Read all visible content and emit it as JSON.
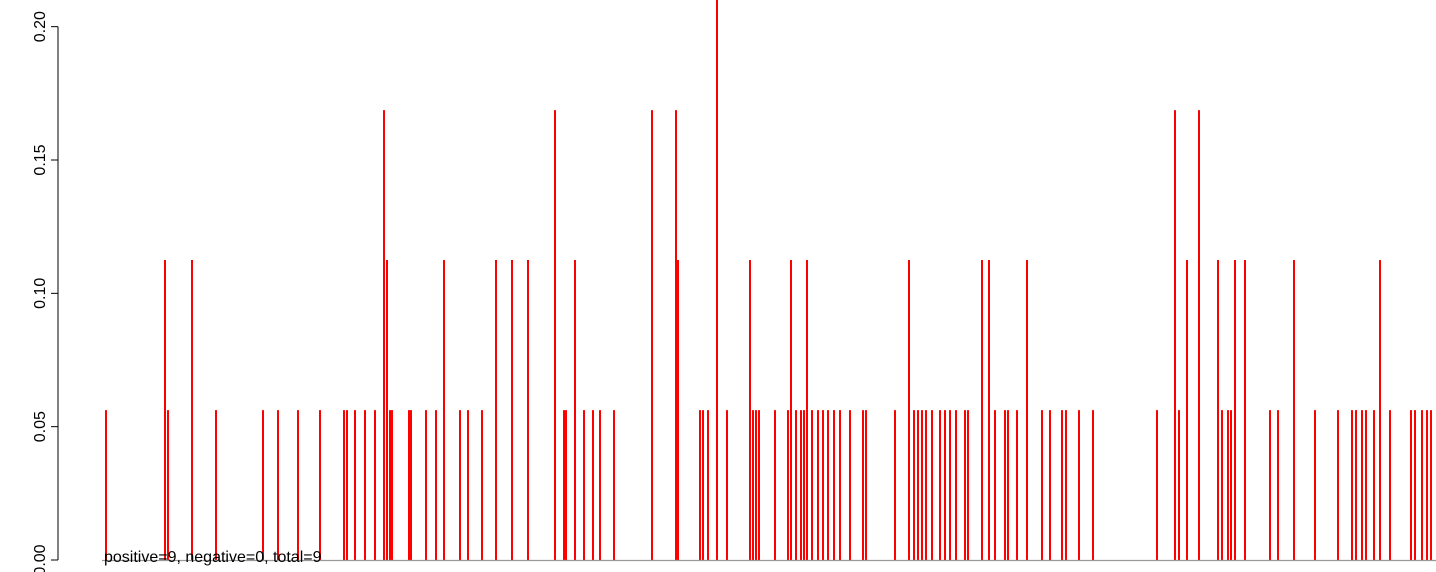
{
  "chart_data": {
    "type": "bar",
    "orientation": "vertical",
    "bar_color": "#ff0000",
    "baseline_color": "#999999",
    "grid": false,
    "legend": "none",
    "xlim": [
      0,
      1440
    ],
    "ylim": [
      0,
      0.21
    ],
    "y_ticks": [
      {
        "value": 0.0,
        "label": "0.00"
      },
      {
        "value": 0.05,
        "label": "0.05"
      },
      {
        "value": 0.1,
        "label": "0.10"
      },
      {
        "value": 0.15,
        "label": "0.15"
      },
      {
        "value": 0.2,
        "label": "0.20"
      }
    ],
    "annotation": "positive=9, negative=0, total=9",
    "bars": [
      {
        "x": 106,
        "y": 0.0562
      },
      {
        "x": 165,
        "y": 0.1125
      },
      {
        "x": 168,
        "y": 0.0562
      },
      {
        "x": 192,
        "y": 0.1125
      },
      {
        "x": 216,
        "y": 0.0562
      },
      {
        "x": 263,
        "y": 0.0562
      },
      {
        "x": 278,
        "y": 0.0562
      },
      {
        "x": 298,
        "y": 0.0562
      },
      {
        "x": 320,
        "y": 0.0562
      },
      {
        "x": 344,
        "y": 0.0562
      },
      {
        "x": 347,
        "y": 0.0562
      },
      {
        "x": 355,
        "y": 0.0562
      },
      {
        "x": 365,
        "y": 0.0562
      },
      {
        "x": 375,
        "y": 0.0562
      },
      {
        "x": 384,
        "y": 0.1687
      },
      {
        "x": 387,
        "y": 0.1125
      },
      {
        "x": 390,
        "y": 0.0562
      },
      {
        "x": 392,
        "y": 0.0562
      },
      {
        "x": 409,
        "y": 0.0562
      },
      {
        "x": 411,
        "y": 0.0562
      },
      {
        "x": 426,
        "y": 0.0562
      },
      {
        "x": 436,
        "y": 0.0562
      },
      {
        "x": 444,
        "y": 0.1125
      },
      {
        "x": 460,
        "y": 0.0562
      },
      {
        "x": 468,
        "y": 0.0562
      },
      {
        "x": 482,
        "y": 0.0562
      },
      {
        "x": 496,
        "y": 0.1125
      },
      {
        "x": 512,
        "y": 0.1125
      },
      {
        "x": 528,
        "y": 0.1125
      },
      {
        "x": 555,
        "y": 0.1687
      },
      {
        "x": 564,
        "y": 0.0562
      },
      {
        "x": 566,
        "y": 0.0562
      },
      {
        "x": 575,
        "y": 0.1125
      },
      {
        "x": 584,
        "y": 0.0562
      },
      {
        "x": 593,
        "y": 0.0562
      },
      {
        "x": 600,
        "y": 0.0562
      },
      {
        "x": 614,
        "y": 0.0562
      },
      {
        "x": 652,
        "y": 0.1687
      },
      {
        "x": 676,
        "y": 0.1687
      },
      {
        "x": 678,
        "y": 0.1125
      },
      {
        "x": 700,
        "y": 0.0562
      },
      {
        "x": 703,
        "y": 0.0562
      },
      {
        "x": 708,
        "y": 0.0562
      },
      {
        "x": 717,
        "y": 0.21
      },
      {
        "x": 727,
        "y": 0.0562
      },
      {
        "x": 750,
        "y": 0.1125
      },
      {
        "x": 753,
        "y": 0.0562
      },
      {
        "x": 756,
        "y": 0.0562
      },
      {
        "x": 759,
        "y": 0.0562
      },
      {
        "x": 775,
        "y": 0.0562
      },
      {
        "x": 788,
        "y": 0.0562
      },
      {
        "x": 791,
        "y": 0.1125
      },
      {
        "x": 796,
        "y": 0.0562
      },
      {
        "x": 801,
        "y": 0.0562
      },
      {
        "x": 804,
        "y": 0.0562
      },
      {
        "x": 807,
        "y": 0.1125
      },
      {
        "x": 812,
        "y": 0.0562
      },
      {
        "x": 818,
        "y": 0.0562
      },
      {
        "x": 823,
        "y": 0.0562
      },
      {
        "x": 828,
        "y": 0.0562
      },
      {
        "x": 834,
        "y": 0.0562
      },
      {
        "x": 840,
        "y": 0.0562
      },
      {
        "x": 850,
        "y": 0.0562
      },
      {
        "x": 863,
        "y": 0.0562
      },
      {
        "x": 866,
        "y": 0.0562
      },
      {
        "x": 895,
        "y": 0.0562
      },
      {
        "x": 909,
        "y": 0.1125
      },
      {
        "x": 914,
        "y": 0.0562
      },
      {
        "x": 918,
        "y": 0.0562
      },
      {
        "x": 922,
        "y": 0.0562
      },
      {
        "x": 926,
        "y": 0.0562
      },
      {
        "x": 932,
        "y": 0.0562
      },
      {
        "x": 940,
        "y": 0.0562
      },
      {
        "x": 945,
        "y": 0.0562
      },
      {
        "x": 950,
        "y": 0.0562
      },
      {
        "x": 956,
        "y": 0.0562
      },
      {
        "x": 965,
        "y": 0.0562
      },
      {
        "x": 968,
        "y": 0.0562
      },
      {
        "x": 982,
        "y": 0.1125
      },
      {
        "x": 989,
        "y": 0.1125
      },
      {
        "x": 995,
        "y": 0.0562
      },
      {
        "x": 1005,
        "y": 0.0562
      },
      {
        "x": 1008,
        "y": 0.0562
      },
      {
        "x": 1017,
        "y": 0.0562
      },
      {
        "x": 1027,
        "y": 0.1125
      },
      {
        "x": 1042,
        "y": 0.0562
      },
      {
        "x": 1050,
        "y": 0.0562
      },
      {
        "x": 1062,
        "y": 0.0562
      },
      {
        "x": 1066,
        "y": 0.0562
      },
      {
        "x": 1079,
        "y": 0.0562
      },
      {
        "x": 1093,
        "y": 0.0562
      },
      {
        "x": 1157,
        "y": 0.0562
      },
      {
        "x": 1175,
        "y": 0.1687
      },
      {
        "x": 1179,
        "y": 0.0562
      },
      {
        "x": 1187,
        "y": 0.1125
      },
      {
        "x": 1199,
        "y": 0.1687
      },
      {
        "x": 1218,
        "y": 0.1125
      },
      {
        "x": 1222,
        "y": 0.0562
      },
      {
        "x": 1228,
        "y": 0.0562
      },
      {
        "x": 1231,
        "y": 0.0562
      },
      {
        "x": 1235,
        "y": 0.1125
      },
      {
        "x": 1245,
        "y": 0.1125
      },
      {
        "x": 1270,
        "y": 0.0562
      },
      {
        "x": 1278,
        "y": 0.0562
      },
      {
        "x": 1294,
        "y": 0.1125
      },
      {
        "x": 1315,
        "y": 0.0562
      },
      {
        "x": 1338,
        "y": 0.0562
      },
      {
        "x": 1352,
        "y": 0.0562
      },
      {
        "x": 1356,
        "y": 0.0562
      },
      {
        "x": 1362,
        "y": 0.0562
      },
      {
        "x": 1366,
        "y": 0.0562
      },
      {
        "x": 1374,
        "y": 0.0562
      },
      {
        "x": 1380,
        "y": 0.1125
      },
      {
        "x": 1390,
        "y": 0.0562
      },
      {
        "x": 1411,
        "y": 0.0562
      },
      {
        "x": 1415,
        "y": 0.0562
      },
      {
        "x": 1422,
        "y": 0.0562
      },
      {
        "x": 1427,
        "y": 0.0562
      },
      {
        "x": 1431,
        "y": 0.0562
      }
    ]
  }
}
